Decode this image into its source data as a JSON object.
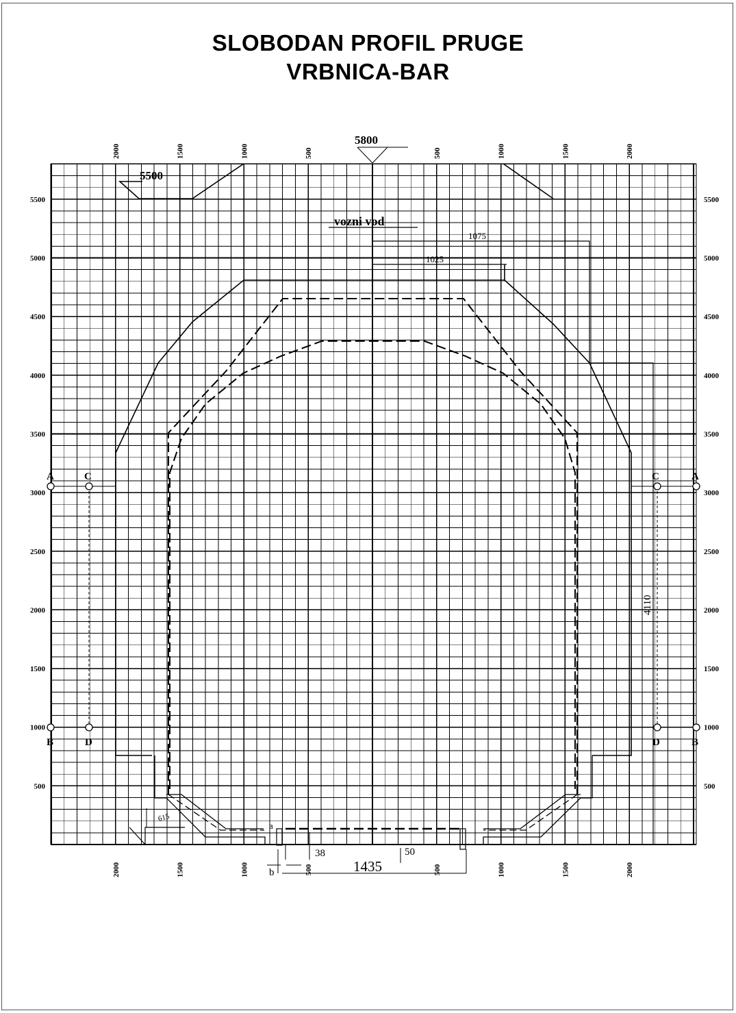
{
  "title_line1": "SLOBODAN PROFIL PRUGE",
  "title_line2": "VRBNICA-BAR",
  "axis": {
    "x_top_labels": [
      "2000",
      "1500",
      "1000",
      "500",
      "500",
      "1000",
      "1500",
      "2000"
    ],
    "x_bottom_labels": [
      "2000",
      "1500",
      "1000",
      "500",
      "500",
      "1000",
      "1500",
      "2000"
    ],
    "y_labels": [
      "500",
      "1000",
      "1500",
      "2000",
      "2500",
      "3000",
      "3500",
      "4000",
      "4500",
      "5000",
      "5500"
    ]
  },
  "dimensions": {
    "top_height": "5800",
    "left_height": "5500",
    "overhead_line": "vozni vod",
    "dim_1075": "1075",
    "dim_1025": "1025",
    "dim_4110": "4110",
    "gauge": "1435",
    "dim_38": "38",
    "dim_50": "50",
    "dim_615": "615",
    "mark_a": "a",
    "mark_b": "b"
  },
  "points": {
    "A": "A",
    "B": "B",
    "C": "C",
    "D": "D"
  }
}
